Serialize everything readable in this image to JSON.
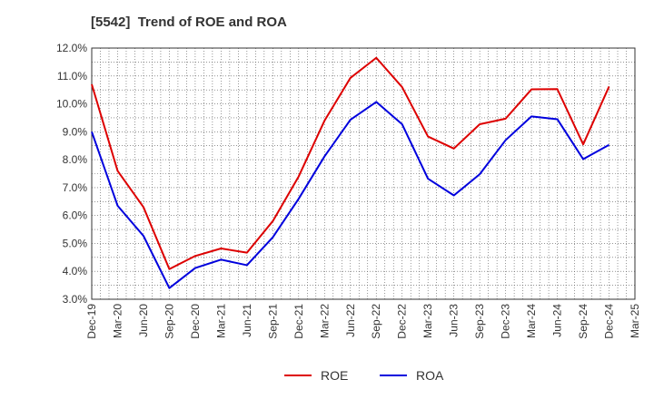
{
  "chart_data": {
    "type": "line",
    "title": "[5542]  Trend of ROE and ROA",
    "xlabel": "",
    "ylabel": "",
    "categories": [
      "Dec-19",
      "Mar-20",
      "Jun-20",
      "Sep-20",
      "Dec-20",
      "Mar-21",
      "Jun-21",
      "Sep-21",
      "Dec-21",
      "Mar-22",
      "Jun-22",
      "Sep-22",
      "Dec-22",
      "Mar-23",
      "Jun-23",
      "Sep-23",
      "Dec-23",
      "Mar-24",
      "Jun-24",
      "Sep-24",
      "Dec-24",
      "Mar-25"
    ],
    "series": [
      {
        "name": "ROE",
        "color": "#dd0000",
        "values": [
          10.7,
          7.6,
          6.3,
          4.08,
          4.55,
          4.82,
          4.67,
          5.8,
          7.4,
          9.4,
          10.93,
          11.65,
          10.6,
          8.83,
          8.4,
          9.27,
          9.47,
          10.52,
          10.53,
          8.55,
          10.62,
          null
        ]
      },
      {
        "name": "ROA",
        "color": "#0000dd",
        "values": [
          9.0,
          6.35,
          5.27,
          3.4,
          4.12,
          4.42,
          4.22,
          5.22,
          6.6,
          8.12,
          9.43,
          10.07,
          9.27,
          7.32,
          6.72,
          7.48,
          8.7,
          9.55,
          9.45,
          8.02,
          8.53,
          null
        ]
      }
    ],
    "yticks": [
      "3.0%",
      "4.0%",
      "5.0%",
      "6.0%",
      "7.0%",
      "8.0%",
      "9.0%",
      "10.0%",
      "11.0%",
      "12.0%"
    ],
    "ylim": [
      3.0,
      12.0
    ],
    "grid": true,
    "legend_position": "bottom"
  }
}
